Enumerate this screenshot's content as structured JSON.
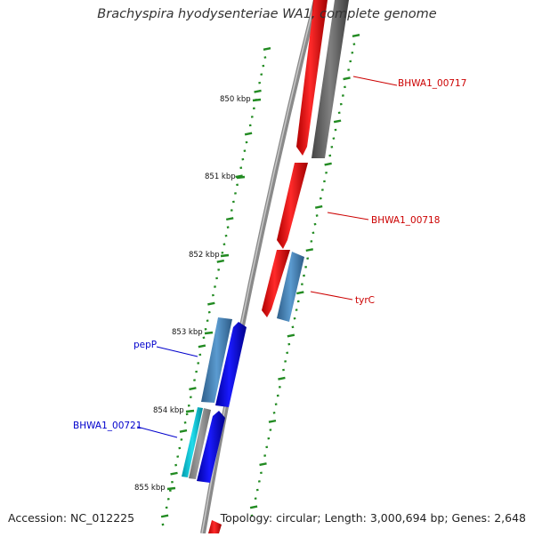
{
  "map": {
    "title": "Brachyspira hyodysenteriae WA1, complete genome",
    "accession": "Accession: NC_012225",
    "topology": "Topology: circular; Length: 3,000,694 bp; Genes: 2,648",
    "ruler_labels": [
      "850 kbp",
      "851 kbp",
      "852 kbp",
      "853 kbp",
      "854 kbp",
      "855 kbp"
    ],
    "gene_labels": [
      {
        "text": "BHWA1_00717",
        "color": "#cc0000"
      },
      {
        "text": "BHWA1_00718",
        "color": "#cc0000"
      },
      {
        "text": "tyrC",
        "color": "#cc0000"
      },
      {
        "text": "pepP",
        "color": "#0000cc"
      },
      {
        "text": "BHWA1_00721",
        "color": "#0000cc"
      }
    ],
    "colors": {
      "red_gene": "#ff0000",
      "blue_gene": "#0000ff",
      "steel_gene": "#4a86c0",
      "cyan_gene": "#00bcd4",
      "grey_gene": "#666666",
      "backbone": "#888888",
      "tick": "#228b22"
    }
  }
}
